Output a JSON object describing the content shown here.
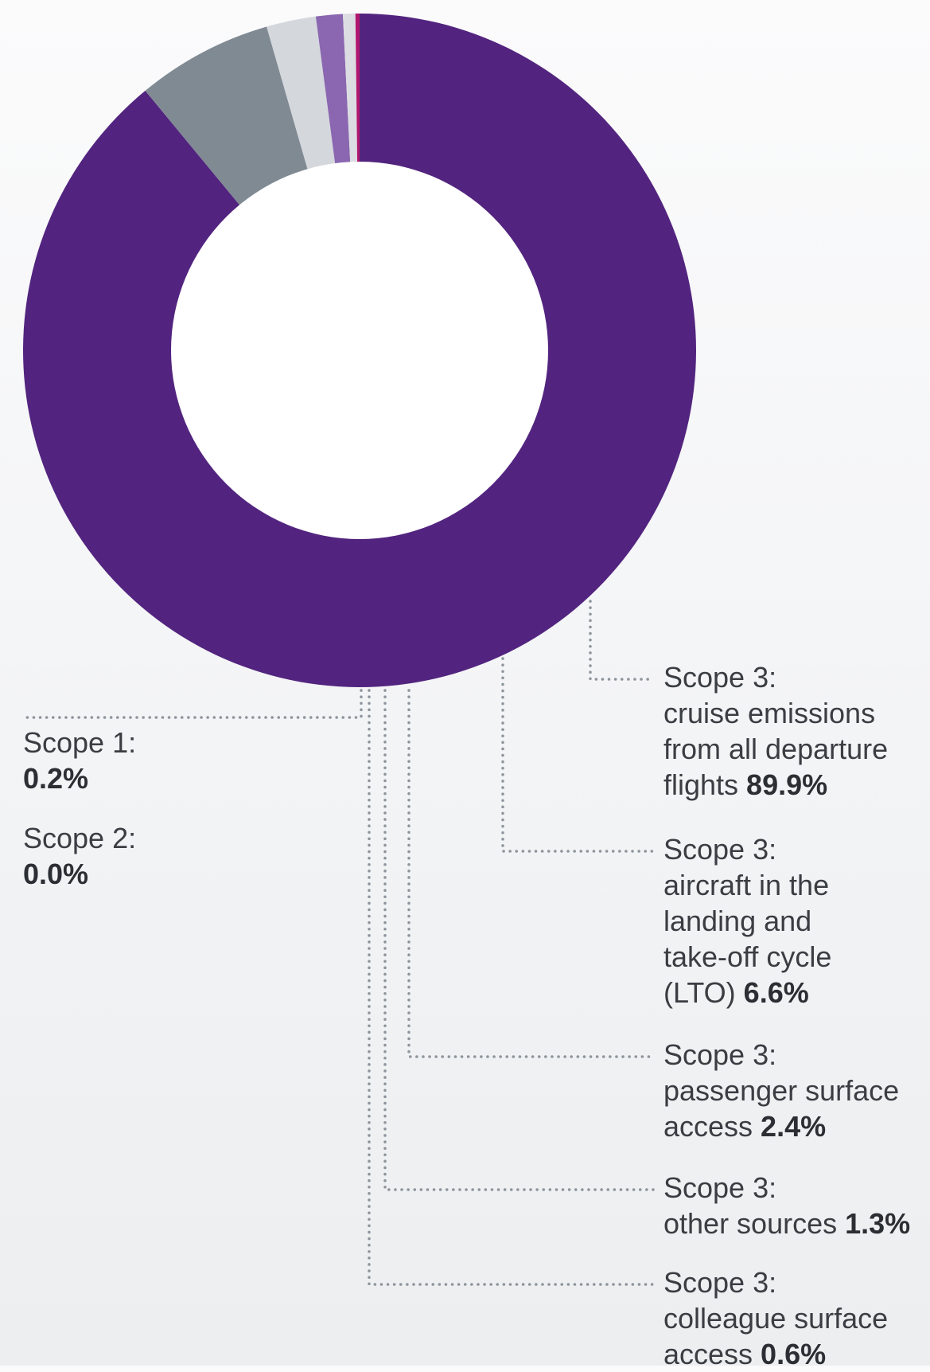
{
  "colors": {
    "cruise": "#52247f",
    "lto": "#808a93",
    "passenger": "#d4d7dc",
    "other": "#8a67b0",
    "colleague": "#dcdde2",
    "scope1": "#b0176f",
    "scope2": "#4a4a4a",
    "leader": "#8d949b",
    "center": "#ffffff"
  },
  "chart_data": {
    "type": "pie",
    "donut": true,
    "start_angle_deg": 0,
    "direction": "clockwise",
    "slices": [
      {
        "key": "cruise",
        "label": "Scope 3: cruise emissions from all departure flights",
        "value": 89.9
      },
      {
        "key": "lto",
        "label": "Scope 3: aircraft in the landing and take-off cycle (LTO)",
        "value": 6.6
      },
      {
        "key": "passenger",
        "label": "Scope 3: passenger surface access",
        "value": 2.4
      },
      {
        "key": "other",
        "label": "Scope 3: other sources",
        "value": 1.3
      },
      {
        "key": "colleague",
        "label": "Scope 3: colleague surface access",
        "value": 0.6
      },
      {
        "key": "scope2",
        "label": "Scope 2:",
        "value": 0.0
      },
      {
        "key": "scope1",
        "label": "Scope 1:",
        "value": 0.2
      }
    ]
  },
  "labels": {
    "cruise": {
      "lines": [
        "Scope 3:",
        "cruise emissions",
        "from all departure"
      ],
      "last_prefix": "flights ",
      "value": "89.9%"
    },
    "lto": {
      "lines": [
        "Scope 3:",
        "aircraft in the",
        "landing and",
        "take-off cycle"
      ],
      "last_prefix": "(LTO) ",
      "value": "6.6%"
    },
    "passenger": {
      "lines": [
        "Scope 3:",
        "passenger surface"
      ],
      "last_prefix": "access ",
      "value": "2.4%"
    },
    "other": {
      "lines": [
        "Scope 3:"
      ],
      "last_prefix": "other sources ",
      "value": "1.3%"
    },
    "colleague": {
      "lines": [
        "Scope 3:",
        "colleague surface"
      ],
      "last_prefix": "access ",
      "value": "0.6%"
    },
    "scope1": {
      "lines": [
        "Scope 1:"
      ],
      "last_prefix": "",
      "value": "0.2%"
    },
    "scope2": {
      "lines": [
        "Scope 2:"
      ],
      "last_prefix": "",
      "value": "0.0%"
    }
  }
}
